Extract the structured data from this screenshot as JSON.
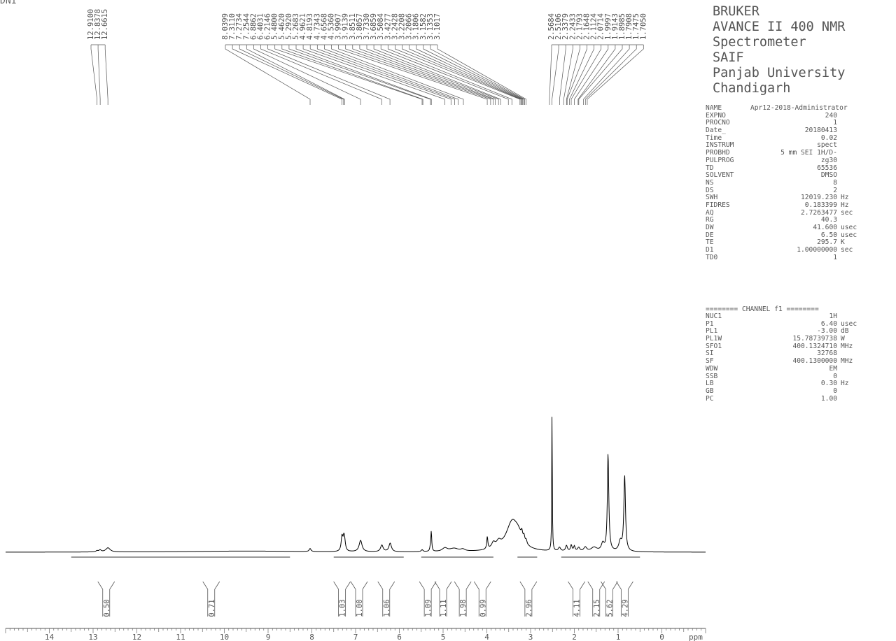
{
  "sample_id": "DN1",
  "instrument": {
    "lines": [
      "BRUKER",
      "AVANCE II 400 NMR",
      "Spectrometer",
      "SAIF",
      "Panjab University",
      "Chandigarh"
    ]
  },
  "acquisition_params": [
    {
      "name": "NAME",
      "value": "Apr12-2018-Administrator",
      "unit": ""
    },
    {
      "name": "EXPNO",
      "value": "240",
      "unit": ""
    },
    {
      "name": "PROCNO",
      "value": "1",
      "unit": ""
    },
    {
      "name": "Date_",
      "value": "20180413",
      "unit": ""
    },
    {
      "name": "Time",
      "value": "0.02",
      "unit": ""
    },
    {
      "name": "INSTRUM",
      "value": "spect",
      "unit": ""
    },
    {
      "name": "PROBHD",
      "value": "5 mm SEI 1H/D-",
      "unit": ""
    },
    {
      "name": "PULPROG",
      "value": "zg30",
      "unit": ""
    },
    {
      "name": "TD",
      "value": "65536",
      "unit": ""
    },
    {
      "name": "SOLVENT",
      "value": "DMSO",
      "unit": ""
    },
    {
      "name": "NS",
      "value": "8",
      "unit": ""
    },
    {
      "name": "DS",
      "value": "2",
      "unit": ""
    },
    {
      "name": "SWH",
      "value": "12019.230",
      "unit": "Hz"
    },
    {
      "name": "FIDRES",
      "value": "0.183399",
      "unit": "Hz"
    },
    {
      "name": "AQ",
      "value": "2.7263477",
      "unit": "sec"
    },
    {
      "name": "RG",
      "value": "40.3",
      "unit": ""
    },
    {
      "name": "DW",
      "value": "41.600",
      "unit": "usec"
    },
    {
      "name": "DE",
      "value": "6.50",
      "unit": "usec"
    },
    {
      "name": "TE",
      "value": "295.7",
      "unit": "K"
    },
    {
      "name": "D1",
      "value": "1.00000000",
      "unit": "sec"
    },
    {
      "name": "TD0",
      "value": "1",
      "unit": ""
    }
  ],
  "channel_header": "======== CHANNEL f1 ========",
  "channel_params": [
    {
      "name": "NUC1",
      "value": "1H",
      "unit": ""
    },
    {
      "name": "P1",
      "value": "6.40",
      "unit": "usec"
    },
    {
      "name": "PL1",
      "value": "-3.00",
      "unit": "dB"
    },
    {
      "name": "PL1W",
      "value": "15.78739738",
      "unit": "W"
    },
    {
      "name": "SFO1",
      "value": "400.1324710",
      "unit": "MHz"
    },
    {
      "name": "SI",
      "value": "32768",
      "unit": ""
    },
    {
      "name": "SF",
      "value": "400.1300000",
      "unit": "MHz"
    },
    {
      "name": "WDW",
      "value": "EM",
      "unit": ""
    },
    {
      "name": "SSB",
      "value": "0",
      "unit": ""
    },
    {
      "name": "LB",
      "value": "0.30",
      "unit": "Hz"
    },
    {
      "name": "GB",
      "value": "0",
      "unit": ""
    },
    {
      "name": "PC",
      "value": "1.00",
      "unit": ""
    }
  ],
  "chart_data": {
    "type": "line",
    "title": "",
    "xlabel": "ppm",
    "ylabel": "",
    "xlim": [
      15,
      -1
    ],
    "x_reversed": true,
    "x_ticks": [
      14,
      13,
      12,
      11,
      10,
      9,
      8,
      7,
      6,
      5,
      4,
      3,
      2,
      1,
      0
    ],
    "x_tick_labels": [
      "14",
      "13",
      "12",
      "11",
      "10",
      "9",
      "8",
      "7",
      "6",
      "5",
      "4",
      "3",
      "2",
      "1",
      "0"
    ],
    "grid": false,
    "peak_labels": [
      "12.9100",
      "12.8378",
      "12.6615",
      "8.0399",
      "7.3110",
      "7.2734",
      "7.2544",
      "6.8862",
      "6.4031",
      "6.2146",
      "5.4800",
      "5.4620",
      "5.2920",
      "5.2683",
      "4.9621",
      "4.8193",
      "4.7343",
      "4.6568",
      "4.5360",
      "3.9907",
      "3.9139",
      "3.8511",
      "3.8057",
      "3.7330",
      "3.6859",
      "3.5084",
      "3.4277",
      "3.2428",
      "3.2208",
      "3.2066",
      "3.1806",
      "3.1582",
      "3.1353",
      "3.1017",
      "2.5684",
      "2.5106",
      "2.3379",
      "2.2433",
      "2.1793",
      "2.1648",
      "2.1124",
      "2.0714",
      "1.9997",
      "1.9143",
      "1.8985",
      "1.7908",
      "1.7475",
      "1.7050"
    ],
    "peak_groups": [
      {
        "labels": [
          "12.9100",
          "12.8378",
          "12.6615"
        ],
        "ppm": [
          12.91,
          12.8378,
          12.6615
        ]
      },
      {
        "labels": [
          "8.0399",
          "7.3110",
          "7.2734",
          "7.2544",
          "6.8862",
          "6.4031",
          "6.2146",
          "5.4800",
          "5.4620",
          "5.2920",
          "5.2683",
          "4.9621",
          "4.8193",
          "4.7343",
          "4.6568",
          "4.5360",
          "3.9907",
          "3.9139",
          "3.8511",
          "3.8057",
          "3.7330",
          "3.6859",
          "3.5084",
          "3.4277",
          "3.2428",
          "3.2208",
          "3.2066",
          "3.1806",
          "3.1582",
          "3.1353",
          "3.1017"
        ],
        "ppm": [
          8.0399,
          7.311,
          7.2734,
          7.2544,
          6.8862,
          6.4031,
          6.2146,
          5.48,
          5.462,
          5.292,
          5.2683,
          4.9621,
          4.8193,
          4.7343,
          4.6568,
          4.536,
          3.9907,
          3.9139,
          3.8511,
          3.8057,
          3.733,
          3.6859,
          3.5084,
          3.4277,
          3.2428,
          3.2208,
          3.2066,
          3.1806,
          3.1582,
          3.1353,
          3.1017
        ]
      },
      {
        "labels": [
          "2.5684",
          "2.5106",
          "2.3379",
          "2.2433",
          "2.1793",
          "2.1648",
          "2.1124",
          "2.0714",
          "1.9997",
          "1.9143",
          "1.8985",
          "1.7908",
          "1.7475",
          "1.7050"
        ],
        "ppm": [
          2.5684,
          2.5106,
          2.3379,
          2.2433,
          2.1793,
          2.1648,
          2.1124,
          2.0714,
          1.9997,
          1.9143,
          1.8985,
          1.7908,
          1.7475,
          1.705
        ]
      }
    ],
    "peaks": [
      {
        "ppm": 12.91,
        "h": 0.006,
        "w": 0.03
      },
      {
        "ppm": 12.84,
        "h": 0.01,
        "w": 0.03
      },
      {
        "ppm": 12.66,
        "h": 0.022,
        "w": 0.06
      },
      {
        "ppm": 9.5,
        "h": 0.006,
        "w": 1.5
      },
      {
        "ppm": 8.04,
        "h": 0.016,
        "w": 0.025
      },
      {
        "ppm": 7.311,
        "h": 0.075,
        "w": 0.022
      },
      {
        "ppm": 7.27,
        "h": 0.06,
        "w": 0.022
      },
      {
        "ppm": 7.25,
        "h": 0.04,
        "w": 0.022
      },
      {
        "ppm": 6.886,
        "h": 0.06,
        "w": 0.04
      },
      {
        "ppm": 6.4,
        "h": 0.035,
        "w": 0.035
      },
      {
        "ppm": 6.21,
        "h": 0.045,
        "w": 0.035
      },
      {
        "ppm": 5.48,
        "h": 0.01,
        "w": 0.025
      },
      {
        "ppm": 5.27,
        "h": 0.102,
        "w": 0.012
      },
      {
        "ppm": 5.29,
        "h": 0.02,
        "w": 0.015
      },
      {
        "ppm": 4.96,
        "h": 0.018,
        "w": 0.07
      },
      {
        "ppm": 4.75,
        "h": 0.016,
        "w": 0.12
      },
      {
        "ppm": 4.55,
        "h": 0.01,
        "w": 0.06
      },
      {
        "ppm": 3.99,
        "h": 0.065,
        "w": 0.015
      },
      {
        "ppm": 3.85,
        "h": 0.03,
        "w": 0.05
      },
      {
        "ppm": 3.73,
        "h": 0.03,
        "w": 0.06
      },
      {
        "ppm": 3.42,
        "h": 0.155,
        "w": 0.17
      },
      {
        "ppm": 3.28,
        "h": 0.045,
        "w": 0.1
      },
      {
        "ppm": 3.2,
        "h": 0.035,
        "w": 0.02
      },
      {
        "ppm": 3.15,
        "h": 0.03,
        "w": 0.02
      },
      {
        "ppm": 3.1,
        "h": 0.02,
        "w": 0.02
      },
      {
        "ppm": 2.51,
        "h": 0.767,
        "w": 0.007
      },
      {
        "ppm": 2.34,
        "h": 0.02,
        "w": 0.03
      },
      {
        "ppm": 2.18,
        "h": 0.03,
        "w": 0.025
      },
      {
        "ppm": 2.07,
        "h": 0.032,
        "w": 0.02
      },
      {
        "ppm": 2.0,
        "h": 0.026,
        "w": 0.02
      },
      {
        "ppm": 1.9,
        "h": 0.02,
        "w": 0.03
      },
      {
        "ppm": 1.75,
        "h": 0.022,
        "w": 0.04
      },
      {
        "ppm": 1.55,
        "h": 0.022,
        "w": 0.08
      },
      {
        "ppm": 1.35,
        "h": 0.04,
        "w": 0.04
      },
      {
        "ppm": 1.23,
        "h": 0.49,
        "w": 0.018
      },
      {
        "ppm": 1.21,
        "h": 0.04,
        "w": 0.03
      },
      {
        "ppm": 0.85,
        "h": 0.4,
        "w": 0.022
      },
      {
        "ppm": 0.95,
        "h": 0.05,
        "w": 0.04
      }
    ],
    "integral_regions": [
      {
        "start": 13.5,
        "end": 8.5
      },
      {
        "start": 7.5,
        "end": 5.9
      },
      {
        "start": 5.5,
        "end": 3.85
      },
      {
        "start": 3.3,
        "end": 2.85
      },
      {
        "start": 2.3,
        "end": 0.5
      }
    ],
    "integrals": [
      {
        "value": "0.50",
        "ppm": 12.7
      },
      {
        "value": "0.71",
        "ppm": 10.3
      },
      {
        "value": "1.03",
        "ppm": 7.31
      },
      {
        "value": "1.00",
        "ppm": 6.92
      },
      {
        "value": "1.06",
        "ppm": 6.3
      },
      {
        "value": "1.09",
        "ppm": 5.35
      },
      {
        "value": "1.11",
        "ppm": 5.0
      },
      {
        "value": "1.98",
        "ppm": 4.55
      },
      {
        "value": "0.99",
        "ppm": 4.1
      },
      {
        "value": "2.96",
        "ppm": 3.05
      },
      {
        "value": "4.11",
        "ppm": 1.95
      },
      {
        "value": "2.15",
        "ppm": 1.5
      },
      {
        "value": "5.62",
        "ppm": 1.2
      },
      {
        "value": "4.29",
        "ppm": 0.85
      }
    ]
  }
}
